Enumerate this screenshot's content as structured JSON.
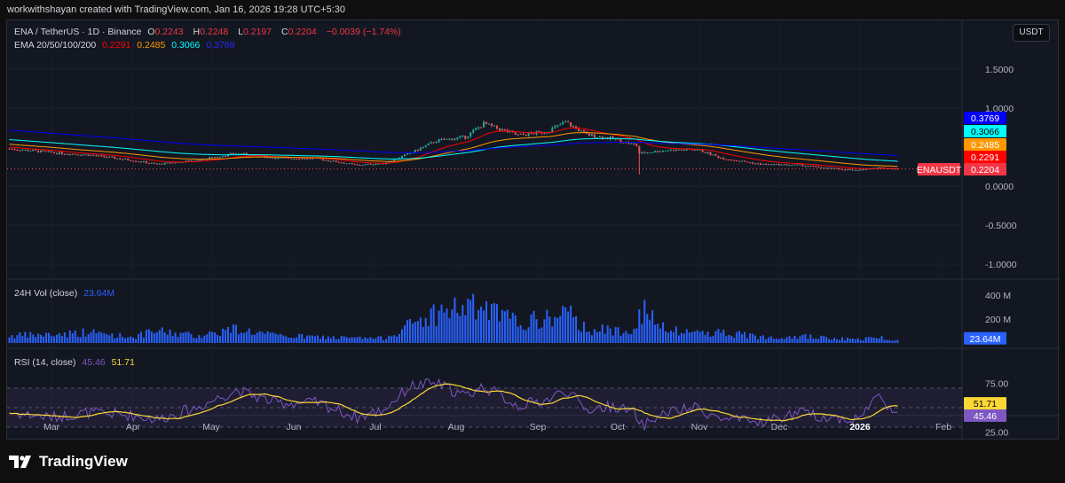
{
  "credit": "workwithshayan created with TradingView.com, Jan 16, 2026 19:28 UTC+5:30",
  "brand": "TradingView",
  "currency_button": "USDT",
  "symbol": {
    "title": "ENA / TetherUS · 1D · Binance",
    "o_label": "O",
    "o": "0.2243",
    "h_label": "H",
    "h": "0.2248",
    "l_label": "L",
    "l": "0.2197",
    "c_label": "C",
    "c": "0.2204",
    "change": "−0.0039 (−1.74%)"
  },
  "ema": {
    "label": "EMA 20/50/100/200",
    "values": [
      "0.2291",
      "0.2485",
      "0.3066",
      "0.3769"
    ]
  },
  "vol": {
    "label": "24H Vol (close)",
    "value": "23.64M"
  },
  "rsi": {
    "label": "RSI (14, close)",
    "value": "45.46",
    "ma": "51.71"
  },
  "colors": {
    "up": "#26a69a",
    "down": "#ef5350",
    "ema20": "#ff0000",
    "ema50": "#ff9800",
    "ema100": "#00ffff",
    "ema200": "#0000ff",
    "volume": "#2962ff",
    "rsi": "#7e57c2",
    "rsi_ma": "#fdd835",
    "bg": "#131722"
  },
  "chart_data": [
    {
      "type": "candlestick",
      "title": "ENA / TetherUS · 1D · Binance",
      "ylim": [
        -1.15,
        1.75
      ],
      "y_ticks": [
        "1.5000",
        "1.0000",
        "0.0000",
        "-0.5000",
        "-1.0000"
      ],
      "x_ticks": [
        "Mar",
        "Apr",
        "May",
        "Jun",
        "Jul",
        "Aug",
        "Sep",
        "Oct",
        "Nov",
        "Dec",
        "2026",
        "Feb"
      ],
      "price_labels": [
        {
          "name": "EMA 200",
          "value": "0.3769"
        },
        {
          "name": "EMA 100",
          "value": "0.3066"
        },
        {
          "name": "EMA 50",
          "value": "0.2485"
        },
        {
          "name": "EMA 20",
          "value": "0.2291"
        },
        {
          "name": "ENAUSDT",
          "value": "0.2204"
        }
      ],
      "points": [
        [
          "2025-02-13",
          0.48
        ],
        [
          "2025-03-01",
          0.43
        ],
        [
          "2025-03-15",
          0.4
        ],
        [
          "2025-04-01",
          0.33
        ],
        [
          "2025-04-10",
          0.28
        ],
        [
          "2025-04-25",
          0.33
        ],
        [
          "2025-05-10",
          0.42
        ],
        [
          "2025-05-25",
          0.36
        ],
        [
          "2025-06-10",
          0.35
        ],
        [
          "2025-06-25",
          0.27
        ],
        [
          "2025-07-05",
          0.29
        ],
        [
          "2025-07-15",
          0.42
        ],
        [
          "2025-07-25",
          0.58
        ],
        [
          "2025-08-05",
          0.63
        ],
        [
          "2025-08-12",
          0.8
        ],
        [
          "2025-08-25",
          0.65
        ],
        [
          "2025-09-05",
          0.7
        ],
        [
          "2025-09-12",
          0.82
        ],
        [
          "2025-09-20",
          0.66
        ],
        [
          "2025-10-01",
          0.6
        ],
        [
          "2025-10-09",
          0.52
        ],
        [
          "2025-10-10",
          0.42
        ],
        [
          "2025-10-20",
          0.46
        ],
        [
          "2025-11-01",
          0.47
        ],
        [
          "2025-11-10",
          0.36
        ],
        [
          "2025-11-25",
          0.28
        ],
        [
          "2025-12-10",
          0.27
        ],
        [
          "2025-12-20",
          0.23
        ],
        [
          "2026-01-01",
          0.2
        ],
        [
          "2026-01-08",
          0.24
        ],
        [
          "2026-01-16",
          0.2204
        ]
      ]
    },
    {
      "type": "bar",
      "title": "24H Vol (close)",
      "unit": "M",
      "y_ticks": [
        "400 M",
        "200 M"
      ],
      "points": [
        [
          "2025-02-13",
          60
        ],
        [
          "2025-03-01",
          70
        ],
        [
          "2025-03-15",
          90
        ],
        [
          "2025-04-01",
          50
        ],
        [
          "2025-04-10",
          100
        ],
        [
          "2025-04-25",
          60
        ],
        [
          "2025-05-10",
          120
        ],
        [
          "2025-05-25",
          60
        ],
        [
          "2025-06-10",
          50
        ],
        [
          "2025-06-25",
          40
        ],
        [
          "2025-07-05",
          40
        ],
        [
          "2025-07-15",
          150
        ],
        [
          "2025-07-25",
          250
        ],
        [
          "2025-08-05",
          300
        ],
        [
          "2025-08-12",
          280
        ],
        [
          "2025-08-25",
          170
        ],
        [
          "2025-09-05",
          200
        ],
        [
          "2025-09-12",
          250
        ],
        [
          "2025-09-20",
          120
        ],
        [
          "2025-10-01",
          100
        ],
        [
          "2025-10-09",
          140
        ],
        [
          "2025-10-10",
          300
        ],
        [
          "2025-10-20",
          100
        ],
        [
          "2025-11-01",
          90
        ],
        [
          "2025-11-10",
          90
        ],
        [
          "2025-11-25",
          50
        ],
        [
          "2025-12-10",
          60
        ],
        [
          "2025-12-20",
          40
        ],
        [
          "2026-01-01",
          30
        ],
        [
          "2026-01-08",
          50
        ],
        [
          "2026-01-16",
          23.64
        ]
      ]
    },
    {
      "type": "line",
      "title": "RSI (14, close)",
      "ylim": [
        10,
        85
      ],
      "y_ticks": [
        "75.00",
        "25.00"
      ],
      "bands": [
        30,
        50,
        70
      ],
      "points": [
        [
          "2025-02-13",
          45
        ],
        [
          "2025-03-01",
          40
        ],
        [
          "2025-03-15",
          45
        ],
        [
          "2025-04-01",
          42
        ],
        [
          "2025-04-10",
          38
        ],
        [
          "2025-04-25",
          50
        ],
        [
          "2025-05-10",
          68
        ],
        [
          "2025-05-25",
          55
        ],
        [
          "2025-06-10",
          55
        ],
        [
          "2025-06-25",
          40
        ],
        [
          "2025-07-05",
          48
        ],
        [
          "2025-07-15",
          72
        ],
        [
          "2025-07-25",
          75
        ],
        [
          "2025-08-05",
          62
        ],
        [
          "2025-08-12",
          72
        ],
        [
          "2025-08-25",
          52
        ],
        [
          "2025-09-05",
          58
        ],
        [
          "2025-09-12",
          68
        ],
        [
          "2025-09-20",
          48
        ],
        [
          "2025-10-01",
          52
        ],
        [
          "2025-10-09",
          42
        ],
        [
          "2025-10-10",
          30
        ],
        [
          "2025-10-20",
          45
        ],
        [
          "2025-11-01",
          50
        ],
        [
          "2025-11-10",
          38
        ],
        [
          "2025-11-25",
          35
        ],
        [
          "2025-12-10",
          45
        ],
        [
          "2025-12-20",
          40
        ],
        [
          "2026-01-01",
          38
        ],
        [
          "2026-01-08",
          62
        ],
        [
          "2026-01-16",
          45.46
        ]
      ]
    }
  ]
}
